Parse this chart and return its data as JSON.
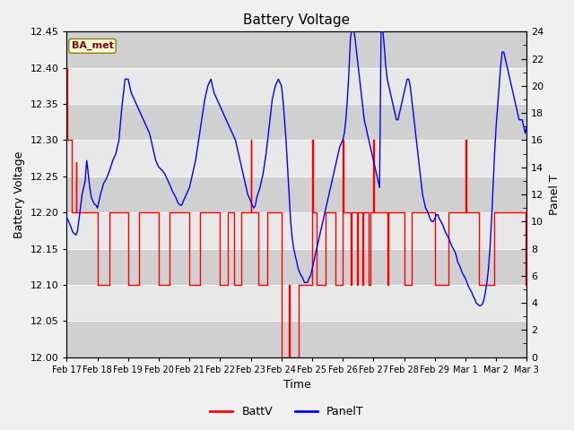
{
  "title": "Battery Voltage",
  "xlabel": "Time",
  "ylabel_left": "Battery Voltage",
  "ylabel_right": "Panel T",
  "ylim_left": [
    12.0,
    12.45
  ],
  "ylim_right": [
    0,
    24
  ],
  "yticks_left": [
    12.0,
    12.05,
    12.1,
    12.15,
    12.2,
    12.25,
    12.3,
    12.35,
    12.4,
    12.45
  ],
  "yticks_right_major": [
    0,
    2,
    4,
    6,
    8,
    10,
    12,
    14,
    16,
    18,
    20,
    22,
    24
  ],
  "xtick_labels": [
    "Feb 17",
    "Feb 18",
    "Feb 19",
    "Feb 20",
    "Feb 21",
    "Feb 22",
    "Feb 23",
    "Feb 24",
    "Feb 25",
    "Feb 26",
    "Feb 27",
    "Feb 28",
    "Feb 29",
    "Mar 1",
    "Mar 2",
    "Mar 3"
  ],
  "background_color": "#f0f0f0",
  "plot_bg_outer": "#d8d8d8",
  "plot_bg_inner": "#e8e8e8",
  "legend_label_batt": "BattV",
  "legend_label_panel": "PanelT",
  "watermark_text": "BA_met",
  "batt_color": "#ff0000",
  "panel_color": "#0000ff",
  "batt_data": [
    [
      0.0,
      12.4
    ],
    [
      0.02,
      12.4
    ],
    [
      0.02,
      12.3
    ],
    [
      0.15,
      12.3
    ],
    [
      0.15,
      12.2
    ],
    [
      0.3,
      12.2
    ],
    [
      0.3,
      12.27
    ],
    [
      0.32,
      12.27
    ],
    [
      0.32,
      12.2
    ],
    [
      1.0,
      12.2
    ],
    [
      1.0,
      12.1
    ],
    [
      1.4,
      12.1
    ],
    [
      1.4,
      12.2
    ],
    [
      2.0,
      12.2
    ],
    [
      2.0,
      12.1
    ],
    [
      2.35,
      12.1
    ],
    [
      2.35,
      12.2
    ],
    [
      3.0,
      12.2
    ],
    [
      3.0,
      12.1
    ],
    [
      3.35,
      12.1
    ],
    [
      3.35,
      12.2
    ],
    [
      4.0,
      12.2
    ],
    [
      4.0,
      12.1
    ],
    [
      4.35,
      12.1
    ],
    [
      4.35,
      12.2
    ],
    [
      5.0,
      12.2
    ],
    [
      5.0,
      12.1
    ],
    [
      5.25,
      12.1
    ],
    [
      5.25,
      12.2
    ],
    [
      5.45,
      12.2
    ],
    [
      5.45,
      12.1
    ],
    [
      5.7,
      12.1
    ],
    [
      5.7,
      12.2
    ],
    [
      6.0,
      12.2
    ],
    [
      6.0,
      12.3
    ],
    [
      6.02,
      12.3
    ],
    [
      6.02,
      12.2
    ],
    [
      6.25,
      12.2
    ],
    [
      6.25,
      12.1
    ],
    [
      6.55,
      12.1
    ],
    [
      6.55,
      12.2
    ],
    [
      7.0,
      12.2
    ],
    [
      7.0,
      12.1
    ],
    [
      7.02,
      12.1
    ],
    [
      7.02,
      12.0
    ],
    [
      7.25,
      12.0
    ],
    [
      7.25,
      12.1
    ],
    [
      7.28,
      12.1
    ],
    [
      7.28,
      12.0
    ],
    [
      7.55,
      12.0
    ],
    [
      7.55,
      12.1
    ],
    [
      8.0,
      12.1
    ],
    [
      8.0,
      12.3
    ],
    [
      8.02,
      12.3
    ],
    [
      8.02,
      12.2
    ],
    [
      8.15,
      12.2
    ],
    [
      8.15,
      12.1
    ],
    [
      8.45,
      12.1
    ],
    [
      8.45,
      12.2
    ],
    [
      8.75,
      12.2
    ],
    [
      8.75,
      12.1
    ],
    [
      9.0,
      12.1
    ],
    [
      9.0,
      12.3
    ],
    [
      9.02,
      12.3
    ],
    [
      9.02,
      12.2
    ],
    [
      9.25,
      12.2
    ],
    [
      9.25,
      12.1
    ],
    [
      9.28,
      12.1
    ],
    [
      9.28,
      12.2
    ],
    [
      9.45,
      12.2
    ],
    [
      9.45,
      12.1
    ],
    [
      9.48,
      12.1
    ],
    [
      9.48,
      12.2
    ],
    [
      9.65,
      12.2
    ],
    [
      9.65,
      12.1
    ],
    [
      9.68,
      12.1
    ],
    [
      9.68,
      12.2
    ],
    [
      9.85,
      12.2
    ],
    [
      9.85,
      12.1
    ],
    [
      9.9,
      12.1
    ],
    [
      9.9,
      12.2
    ],
    [
      10.0,
      12.2
    ],
    [
      10.0,
      12.3
    ],
    [
      10.02,
      12.3
    ],
    [
      10.02,
      12.2
    ],
    [
      10.45,
      12.2
    ],
    [
      10.45,
      12.1
    ],
    [
      10.48,
      12.1
    ],
    [
      10.48,
      12.2
    ],
    [
      11.0,
      12.2
    ],
    [
      11.0,
      12.1
    ],
    [
      11.25,
      12.1
    ],
    [
      11.25,
      12.2
    ],
    [
      12.0,
      12.2
    ],
    [
      12.0,
      12.1
    ],
    [
      12.45,
      12.1
    ],
    [
      12.45,
      12.2
    ],
    [
      13.0,
      12.2
    ],
    [
      13.0,
      12.3
    ],
    [
      13.02,
      12.3
    ],
    [
      13.02,
      12.2
    ],
    [
      13.45,
      12.2
    ],
    [
      13.45,
      12.1
    ],
    [
      13.95,
      12.1
    ],
    [
      13.95,
      12.2
    ],
    [
      14.95,
      12.2
    ],
    [
      14.95,
      12.1
    ],
    [
      15.0,
      12.1
    ],
    [
      15.0,
      12.2
    ]
  ],
  "panel_data": [
    [
      0.0,
      10.3
    ],
    [
      0.1,
      9.8
    ],
    [
      0.2,
      9.2
    ],
    [
      0.3,
      9.0
    ],
    [
      0.35,
      9.3
    ],
    [
      0.4,
      10.2
    ],
    [
      0.5,
      12.0
    ],
    [
      0.6,
      13.0
    ],
    [
      0.65,
      14.5
    ],
    [
      0.7,
      13.5
    ],
    [
      0.75,
      12.5
    ],
    [
      0.8,
      11.8
    ],
    [
      0.85,
      11.5
    ],
    [
      0.9,
      11.3
    ],
    [
      0.95,
      11.2
    ],
    [
      1.0,
      11.0
    ],
    [
      1.05,
      11.5
    ],
    [
      1.1,
      12.0
    ],
    [
      1.2,
      12.8
    ],
    [
      1.3,
      13.2
    ],
    [
      1.35,
      13.5
    ],
    [
      1.4,
      13.8
    ],
    [
      1.5,
      14.5
    ],
    [
      1.6,
      15.0
    ],
    [
      1.7,
      16.0
    ],
    [
      1.8,
      18.5
    ],
    [
      1.9,
      20.5
    ],
    [
      2.0,
      20.5
    ],
    [
      2.05,
      20.0
    ],
    [
      2.1,
      19.5
    ],
    [
      2.2,
      19.0
    ],
    [
      2.3,
      18.5
    ],
    [
      2.4,
      18.0
    ],
    [
      2.5,
      17.5
    ],
    [
      2.6,
      17.0
    ],
    [
      2.7,
      16.5
    ],
    [
      2.8,
      15.5
    ],
    [
      2.9,
      14.5
    ],
    [
      3.0,
      14.0
    ],
    [
      3.1,
      13.8
    ],
    [
      3.2,
      13.5
    ],
    [
      3.3,
      13.0
    ],
    [
      3.4,
      12.5
    ],
    [
      3.45,
      12.2
    ],
    [
      3.5,
      12.0
    ],
    [
      3.55,
      11.8
    ],
    [
      3.6,
      11.5
    ],
    [
      3.65,
      11.3
    ],
    [
      3.7,
      11.2
    ],
    [
      3.75,
      11.2
    ],
    [
      3.8,
      11.5
    ],
    [
      3.9,
      12.0
    ],
    [
      4.0,
      12.5
    ],
    [
      4.1,
      13.5
    ],
    [
      4.2,
      14.5
    ],
    [
      4.3,
      16.0
    ],
    [
      4.4,
      17.5
    ],
    [
      4.5,
      19.0
    ],
    [
      4.6,
      20.0
    ],
    [
      4.7,
      20.5
    ],
    [
      4.75,
      20.0
    ],
    [
      4.8,
      19.5
    ],
    [
      4.9,
      19.0
    ],
    [
      5.0,
      18.5
    ],
    [
      5.1,
      18.0
    ],
    [
      5.2,
      17.5
    ],
    [
      5.3,
      17.0
    ],
    [
      5.4,
      16.5
    ],
    [
      5.5,
      16.0
    ],
    [
      5.6,
      15.0
    ],
    [
      5.7,
      14.0
    ],
    [
      5.8,
      13.0
    ],
    [
      5.9,
      12.0
    ],
    [
      6.0,
      11.5
    ],
    [
      6.05,
      11.2
    ],
    [
      6.1,
      11.0
    ],
    [
      6.15,
      11.2
    ],
    [
      6.2,
      11.8
    ],
    [
      6.3,
      12.5
    ],
    [
      6.4,
      13.5
    ],
    [
      6.5,
      15.0
    ],
    [
      6.6,
      17.0
    ],
    [
      6.7,
      19.0
    ],
    [
      6.8,
      20.0
    ],
    [
      6.9,
      20.5
    ],
    [
      7.0,
      20.0
    ],
    [
      7.05,
      19.0
    ],
    [
      7.1,
      17.5
    ],
    [
      7.15,
      16.0
    ],
    [
      7.2,
      14.0
    ],
    [
      7.25,
      12.0
    ],
    [
      7.3,
      10.0
    ],
    [
      7.35,
      8.8
    ],
    [
      7.4,
      8.0
    ],
    [
      7.45,
      7.5
    ],
    [
      7.5,
      7.0
    ],
    [
      7.55,
      6.5
    ],
    [
      7.6,
      6.2
    ],
    [
      7.65,
      6.0
    ],
    [
      7.7,
      5.8
    ],
    [
      7.75,
      5.5
    ],
    [
      7.8,
      5.5
    ],
    [
      7.85,
      5.5
    ],
    [
      7.9,
      5.8
    ],
    [
      7.95,
      6.0
    ],
    [
      8.0,
      6.5
    ],
    [
      8.05,
      7.0
    ],
    [
      8.1,
      7.5
    ],
    [
      8.15,
      8.0
    ],
    [
      8.2,
      8.5
    ],
    [
      8.25,
      9.0
    ],
    [
      8.3,
      9.5
    ],
    [
      8.4,
      10.5
    ],
    [
      8.5,
      11.5
    ],
    [
      8.6,
      12.5
    ],
    [
      8.7,
      13.5
    ],
    [
      8.8,
      14.5
    ],
    [
      8.9,
      15.5
    ],
    [
      9.0,
      16.0
    ],
    [
      9.05,
      16.5
    ],
    [
      9.1,
      17.5
    ],
    [
      9.15,
      19.0
    ],
    [
      9.2,
      21.0
    ],
    [
      9.25,
      23.5
    ],
    [
      9.3,
      24.3
    ],
    [
      9.35,
      24.3
    ],
    [
      9.4,
      23.5
    ],
    [
      9.45,
      22.5
    ],
    [
      9.5,
      21.5
    ],
    [
      9.55,
      20.5
    ],
    [
      9.6,
      19.5
    ],
    [
      9.65,
      18.5
    ],
    [
      9.7,
      17.5
    ],
    [
      9.75,
      17.0
    ],
    [
      9.8,
      16.5
    ],
    [
      9.85,
      16.0
    ],
    [
      9.9,
      15.5
    ],
    [
      9.95,
      15.0
    ],
    [
      10.0,
      14.5
    ],
    [
      10.05,
      14.0
    ],
    [
      10.1,
      13.5
    ],
    [
      10.15,
      13.0
    ],
    [
      10.2,
      12.5
    ],
    [
      10.25,
      24.3
    ],
    [
      10.3,
      24.3
    ],
    [
      10.35,
      23.0
    ],
    [
      10.4,
      21.5
    ],
    [
      10.45,
      20.5
    ],
    [
      10.5,
      20.0
    ],
    [
      10.55,
      19.5
    ],
    [
      10.6,
      19.0
    ],
    [
      10.65,
      18.5
    ],
    [
      10.7,
      18.0
    ],
    [
      10.75,
      17.5
    ],
    [
      10.8,
      17.5
    ],
    [
      10.85,
      18.0
    ],
    [
      10.9,
      18.5
    ],
    [
      10.95,
      19.0
    ],
    [
      11.0,
      19.5
    ],
    [
      11.05,
      20.0
    ],
    [
      11.1,
      20.5
    ],
    [
      11.15,
      20.5
    ],
    [
      11.2,
      20.0
    ],
    [
      11.25,
      19.0
    ],
    [
      11.3,
      18.0
    ],
    [
      11.35,
      17.0
    ],
    [
      11.4,
      16.0
    ],
    [
      11.45,
      15.0
    ],
    [
      11.5,
      14.0
    ],
    [
      11.55,
      13.0
    ],
    [
      11.6,
      12.0
    ],
    [
      11.65,
      11.5
    ],
    [
      11.7,
      11.0
    ],
    [
      11.75,
      10.8
    ],
    [
      11.8,
      10.5
    ],
    [
      11.85,
      10.2
    ],
    [
      11.9,
      10.0
    ],
    [
      11.95,
      10.0
    ],
    [
      12.0,
      10.2
    ],
    [
      12.05,
      10.5
    ],
    [
      12.1,
      10.5
    ],
    [
      12.15,
      10.2
    ],
    [
      12.2,
      10.0
    ],
    [
      12.25,
      9.8
    ],
    [
      12.3,
      9.5
    ],
    [
      12.35,
      9.2
    ],
    [
      12.4,
      9.0
    ],
    [
      12.45,
      8.8
    ],
    [
      12.5,
      8.5
    ],
    [
      12.55,
      8.2
    ],
    [
      12.6,
      8.0
    ],
    [
      12.65,
      7.8
    ],
    [
      12.7,
      7.5
    ],
    [
      12.75,
      7.0
    ],
    [
      12.8,
      6.8
    ],
    [
      12.85,
      6.5
    ],
    [
      12.9,
      6.2
    ],
    [
      12.95,
      6.0
    ],
    [
      13.0,
      5.8
    ],
    [
      13.05,
      5.5
    ],
    [
      13.1,
      5.2
    ],
    [
      13.15,
      5.0
    ],
    [
      13.2,
      4.8
    ],
    [
      13.25,
      4.5
    ],
    [
      13.3,
      4.3
    ],
    [
      13.35,
      4.0
    ],
    [
      13.4,
      3.9
    ],
    [
      13.45,
      3.8
    ],
    [
      13.5,
      3.8
    ],
    [
      13.55,
      3.9
    ],
    [
      13.6,
      4.2
    ],
    [
      13.65,
      4.8
    ],
    [
      13.7,
      5.5
    ],
    [
      13.75,
      6.5
    ],
    [
      13.8,
      8.0
    ],
    [
      13.85,
      10.0
    ],
    [
      13.9,
      12.5
    ],
    [
      13.95,
      15.0
    ],
    [
      14.0,
      17.0
    ],
    [
      14.05,
      18.5
    ],
    [
      14.1,
      20.0
    ],
    [
      14.15,
      21.5
    ],
    [
      14.2,
      22.5
    ],
    [
      14.25,
      22.5
    ],
    [
      14.3,
      22.0
    ],
    [
      14.35,
      21.5
    ],
    [
      14.4,
      21.0
    ],
    [
      14.45,
      20.5
    ],
    [
      14.5,
      20.0
    ],
    [
      14.55,
      19.5
    ],
    [
      14.6,
      19.0
    ],
    [
      14.65,
      18.5
    ],
    [
      14.7,
      18.0
    ],
    [
      14.75,
      17.5
    ],
    [
      14.8,
      17.5
    ],
    [
      14.85,
      17.5
    ],
    [
      14.9,
      17.0
    ],
    [
      14.95,
      16.5
    ],
    [
      15.0,
      17.0
    ]
  ]
}
